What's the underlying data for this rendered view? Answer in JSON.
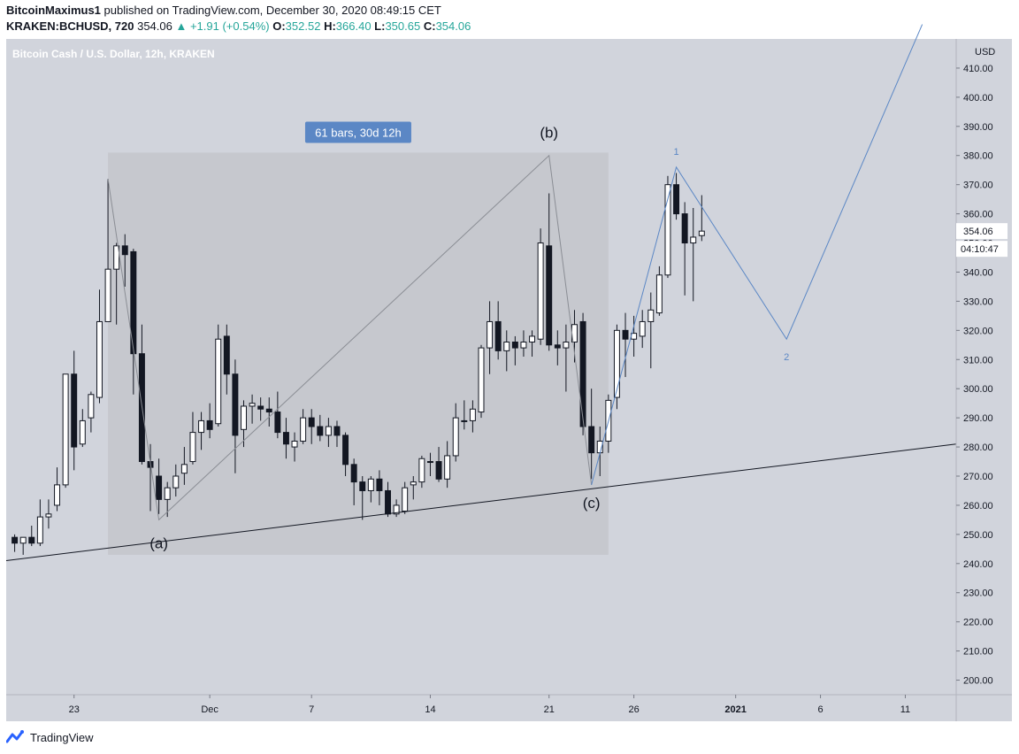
{
  "header": {
    "username": "BitcoinMaximus1",
    "published_text": "published on TradingView.com, December 30, 2020 08:49:15 CET",
    "symbol_line": "KRAKEN:BCHUSD, 720",
    "last": "354.06",
    "change": "▲ +1.91 (+0.54%)",
    "o_label": "O:",
    "o_value": "352.52",
    "h_label": "H:",
    "h_value": "366.40",
    "l_label": "L:",
    "l_value": "350.65",
    "c_label": "C:",
    "c_value": "354.06"
  },
  "chart_title": "Bitcoin Cash / U.S. Dollar, 12h, KRAKEN",
  "price_axis": {
    "currency": "USD",
    "ticks": [
      "200.00",
      "210.00",
      "220.00",
      "230.00",
      "240.00",
      "250.00",
      "260.00",
      "270.00",
      "280.00",
      "290.00",
      "300.00",
      "310.00",
      "320.00",
      "330.00",
      "340.00",
      "350.00",
      "360.00",
      "370.00",
      "380.00",
      "390.00",
      "400.00",
      "410.00"
    ],
    "last_price_label": "354.06",
    "countdown_label": "04:10:47"
  },
  "time_axis": {
    "ticks": [
      "23",
      "Dec",
      "7",
      "14",
      "21",
      "26",
      "2021",
      "6",
      "11"
    ]
  },
  "annotations": {
    "range_label": "61 bars, 30d 12h",
    "wave_a": "(a)",
    "wave_b": "(b)",
    "wave_c": "(c)",
    "wave_1": "1",
    "wave_2": "2"
  },
  "colors": {
    "plot_bg": "#d1d4dc",
    "range_box": "#c6c8ce",
    "range_label_bg": "#5b87c5",
    "wave_blue": "#5b87c5",
    "candle_dark": "#131722",
    "candle_light": "#ffffff",
    "price_label_bg": "#ffffff"
  },
  "chart_data": {
    "type": "candlestick",
    "interval": "12h",
    "title": "Bitcoin Cash / U.S. Dollar, 12h, KRAKEN",
    "ylim": [
      195,
      420
    ],
    "y_unit": "USD",
    "x_range": [
      "2020-11-19T00:00",
      "2021-01-14T00:00"
    ],
    "candles": [
      {
        "t": "2020-11-19T12:00",
        "o": 249,
        "h": 250,
        "l": 244,
        "c": 247
      },
      {
        "t": "2020-11-20T00:00",
        "o": 247,
        "h": 249,
        "l": 243,
        "c": 249
      },
      {
        "t": "2020-11-20T12:00",
        "o": 249,
        "h": 253,
        "l": 246,
        "c": 247
      },
      {
        "t": "2020-11-21T00:00",
        "o": 247,
        "h": 262,
        "l": 246,
        "c": 256
      },
      {
        "t": "2020-11-21T12:00",
        "o": 256,
        "h": 262,
        "l": 252,
        "c": 257
      },
      {
        "t": "2020-11-22T00:00",
        "o": 260,
        "h": 273,
        "l": 258,
        "c": 267
      },
      {
        "t": "2020-11-22T12:00",
        "o": 267,
        "h": 305,
        "l": 266,
        "c": 305
      },
      {
        "t": "2020-11-23T00:00",
        "o": 305,
        "h": 313,
        "l": 272,
        "c": 280
      },
      {
        "t": "2020-11-23T12:00",
        "o": 281,
        "h": 293,
        "l": 280,
        "c": 289
      },
      {
        "t": "2020-11-24T00:00",
        "o": 290,
        "h": 299,
        "l": 285,
        "c": 298
      },
      {
        "t": "2020-11-24T12:00",
        "o": 297,
        "h": 334,
        "l": 295,
        "c": 323
      },
      {
        "t": "2020-11-25T00:00",
        "o": 323,
        "h": 372,
        "l": 323,
        "c": 341
      },
      {
        "t": "2020-11-25T12:00",
        "o": 341,
        "h": 350,
        "l": 322,
        "c": 349
      },
      {
        "t": "2020-11-26T00:00",
        "o": 349,
        "h": 353,
        "l": 335,
        "c": 346
      },
      {
        "t": "2020-11-26T12:00",
        "o": 347,
        "h": 348,
        "l": 298,
        "c": 312
      },
      {
        "t": "2020-11-27T00:00",
        "o": 312,
        "h": 322,
        "l": 274,
        "c": 275
      },
      {
        "t": "2020-11-27T12:00",
        "o": 275,
        "h": 281,
        "l": 258,
        "c": 273
      },
      {
        "t": "2020-11-28T00:00",
        "o": 270,
        "h": 276,
        "l": 257,
        "c": 262
      },
      {
        "t": "2020-11-28T12:00",
        "o": 262,
        "h": 268,
        "l": 256,
        "c": 266
      },
      {
        "t": "2020-11-29T00:00",
        "o": 266,
        "h": 274,
        "l": 263,
        "c": 270
      },
      {
        "t": "2020-11-29T12:00",
        "o": 271,
        "h": 280,
        "l": 267,
        "c": 274
      },
      {
        "t": "2020-11-30T00:00",
        "o": 275,
        "h": 292,
        "l": 274,
        "c": 285
      },
      {
        "t": "2020-11-30T12:00",
        "o": 285,
        "h": 292,
        "l": 279,
        "c": 289
      },
      {
        "t": "2020-12-01T00:00",
        "o": 289,
        "h": 295,
        "l": 283,
        "c": 286
      },
      {
        "t": "2020-12-01T12:00",
        "o": 288,
        "h": 322,
        "l": 287,
        "c": 317
      },
      {
        "t": "2020-12-02T00:00",
        "o": 318,
        "h": 322,
        "l": 298,
        "c": 305
      },
      {
        "t": "2020-12-02T12:00",
        "o": 305,
        "h": 310,
        "l": 271,
        "c": 284
      },
      {
        "t": "2020-12-03T00:00",
        "o": 286,
        "h": 296,
        "l": 280,
        "c": 294
      },
      {
        "t": "2020-12-03T12:00",
        "o": 294,
        "h": 298,
        "l": 288,
        "c": 295
      },
      {
        "t": "2020-12-04T00:00",
        "o": 294,
        "h": 297,
        "l": 289,
        "c": 293
      },
      {
        "t": "2020-12-04T12:00",
        "o": 293,
        "h": 297,
        "l": 287,
        "c": 292
      },
      {
        "t": "2020-12-05T00:00",
        "o": 292,
        "h": 299,
        "l": 283,
        "c": 285
      },
      {
        "t": "2020-12-05T12:00",
        "o": 285,
        "h": 290,
        "l": 276,
        "c": 281
      },
      {
        "t": "2020-12-06T00:00",
        "o": 280,
        "h": 285,
        "l": 275,
        "c": 282
      },
      {
        "t": "2020-12-06T12:00",
        "o": 282,
        "h": 293,
        "l": 281,
        "c": 290
      },
      {
        "t": "2020-12-07T00:00",
        "o": 290,
        "h": 293,
        "l": 281,
        "c": 287
      },
      {
        "t": "2020-12-07T12:00",
        "o": 287,
        "h": 291,
        "l": 282,
        "c": 284
      },
      {
        "t": "2020-12-08T00:00",
        "o": 284,
        "h": 290,
        "l": 280,
        "c": 287
      },
      {
        "t": "2020-12-08T12:00",
        "o": 287,
        "h": 289,
        "l": 280,
        "c": 284
      },
      {
        "t": "2020-12-09T00:00",
        "o": 284,
        "h": 285,
        "l": 270,
        "c": 274
      },
      {
        "t": "2020-12-09T12:00",
        "o": 274,
        "h": 276,
        "l": 260,
        "c": 268
      },
      {
        "t": "2020-12-10T00:00",
        "o": 268,
        "h": 270,
        "l": 255,
        "c": 265
      },
      {
        "t": "2020-12-10T12:00",
        "o": 265,
        "h": 270,
        "l": 261,
        "c": 269
      },
      {
        "t": "2020-12-11T00:00",
        "o": 269,
        "h": 272,
        "l": 260,
        "c": 265
      },
      {
        "t": "2020-12-11T12:00",
        "o": 265,
        "h": 268,
        "l": 256,
        "c": 257
      },
      {
        "t": "2020-12-12T00:00",
        "o": 257,
        "h": 262,
        "l": 256,
        "c": 260
      },
      {
        "t": "2020-12-12T12:00",
        "o": 258,
        "h": 268,
        "l": 257,
        "c": 266
      },
      {
        "t": "2020-12-13T00:00",
        "o": 267,
        "h": 270,
        "l": 262,
        "c": 268
      },
      {
        "t": "2020-12-13T12:00",
        "o": 268,
        "h": 277,
        "l": 266,
        "c": 276
      },
      {
        "t": "2020-12-14T00:00",
        "o": 275,
        "h": 278,
        "l": 270,
        "c": 275
      },
      {
        "t": "2020-12-14T12:00",
        "o": 275,
        "h": 280,
        "l": 268,
        "c": 269
      },
      {
        "t": "2020-12-15T00:00",
        "o": 269,
        "h": 282,
        "l": 266,
        "c": 277
      },
      {
        "t": "2020-12-15T12:00",
        "o": 277,
        "h": 295,
        "l": 275,
        "c": 290
      },
      {
        "t": "2020-12-16T00:00",
        "o": 289,
        "h": 296,
        "l": 286,
        "c": 289
      },
      {
        "t": "2020-12-16T12:00",
        "o": 289,
        "h": 296,
        "l": 285,
        "c": 293
      },
      {
        "t": "2020-12-17T00:00",
        "o": 292,
        "h": 315,
        "l": 290,
        "c": 314
      },
      {
        "t": "2020-12-17T12:00",
        "o": 314,
        "h": 330,
        "l": 305,
        "c": 323
      },
      {
        "t": "2020-12-18T00:00",
        "o": 323,
        "h": 330,
        "l": 310,
        "c": 313
      },
      {
        "t": "2020-12-18T12:00",
        "o": 313,
        "h": 320,
        "l": 306,
        "c": 316
      },
      {
        "t": "2020-12-19T00:00",
        "o": 316,
        "h": 318,
        "l": 308,
        "c": 314
      },
      {
        "t": "2020-12-19T12:00",
        "o": 314,
        "h": 320,
        "l": 311,
        "c": 316
      },
      {
        "t": "2020-12-20T00:00",
        "o": 316,
        "h": 320,
        "l": 311,
        "c": 318
      },
      {
        "t": "2020-12-20T12:00",
        "o": 317,
        "h": 355,
        "l": 315,
        "c": 350
      },
      {
        "t": "2020-12-21T00:00",
        "o": 349,
        "h": 367,
        "l": 313,
        "c": 315
      },
      {
        "t": "2020-12-21T12:00",
        "o": 315,
        "h": 320,
        "l": 308,
        "c": 314
      },
      {
        "t": "2020-12-22T00:00",
        "o": 314,
        "h": 322,
        "l": 299,
        "c": 316
      },
      {
        "t": "2020-12-22T12:00",
        "o": 316,
        "h": 327,
        "l": 309,
        "c": 322
      },
      {
        "t": "2020-12-23T00:00",
        "o": 323,
        "h": 326,
        "l": 284,
        "c": 287
      },
      {
        "t": "2020-12-23T12:00",
        "o": 287,
        "h": 300,
        "l": 269,
        "c": 278
      },
      {
        "t": "2020-12-24T00:00",
        "o": 278,
        "h": 287,
        "l": 270,
        "c": 282
      },
      {
        "t": "2020-12-24T12:00",
        "o": 282,
        "h": 298,
        "l": 278,
        "c": 296
      },
      {
        "t": "2020-12-25T00:00",
        "o": 297,
        "h": 322,
        "l": 293,
        "c": 320
      },
      {
        "t": "2020-12-25T12:00",
        "o": 320,
        "h": 326,
        "l": 304,
        "c": 317
      },
      {
        "t": "2020-12-26T00:00",
        "o": 317,
        "h": 325,
        "l": 311,
        "c": 319
      },
      {
        "t": "2020-12-26T12:00",
        "o": 318,
        "h": 327,
        "l": 314,
        "c": 323
      },
      {
        "t": "2020-12-27T00:00",
        "o": 323,
        "h": 333,
        "l": 307,
        "c": 327
      },
      {
        "t": "2020-12-27T12:00",
        "o": 326,
        "h": 342,
        "l": 325,
        "c": 339
      },
      {
        "t": "2020-12-28T00:00",
        "o": 339,
        "h": 373,
        "l": 338,
        "c": 370
      },
      {
        "t": "2020-12-28T12:00",
        "o": 370,
        "h": 374,
        "l": 358,
        "c": 360
      },
      {
        "t": "2020-12-29T00:00",
        "o": 360,
        "h": 364,
        "l": 332,
        "c": 350
      },
      {
        "t": "2020-12-29T12:00",
        "o": 350,
        "h": 362,
        "l": 330,
        "c": 352
      },
      {
        "t": "2020-12-30T00:00",
        "o": 352.52,
        "h": 366.4,
        "l": 350.65,
        "c": 354.06
      }
    ],
    "range_box": {
      "start": "2020-11-25T00:00",
      "end": "2020-12-24T12:00",
      "low": 243,
      "high": 381
    },
    "trendline": [
      {
        "t": "2020-11-19T00:00",
        "p": 241
      },
      {
        "t": "2021-01-14T00:00",
        "p": 281
      }
    ],
    "abc_path": [
      {
        "t": "2020-11-25T00:00",
        "p": 372,
        "label": ""
      },
      {
        "t": "2020-11-28T00:00",
        "p": 255,
        "label": "(a)"
      },
      {
        "t": "2020-12-21T00:00",
        "p": 380,
        "label": "(b)"
      },
      {
        "t": "2020-12-23T12:00",
        "p": 267,
        "label": "(c)"
      }
    ],
    "projection_path": [
      {
        "t": "2020-12-23T12:00",
        "p": 267,
        "label": ""
      },
      {
        "t": "2020-12-28T12:00",
        "p": 376,
        "label": "1"
      },
      {
        "t": "2021-01-04T00:00",
        "p": 317,
        "label": "2"
      },
      {
        "t": "2021-01-12T00:00",
        "p": 425,
        "label": ""
      }
    ]
  }
}
